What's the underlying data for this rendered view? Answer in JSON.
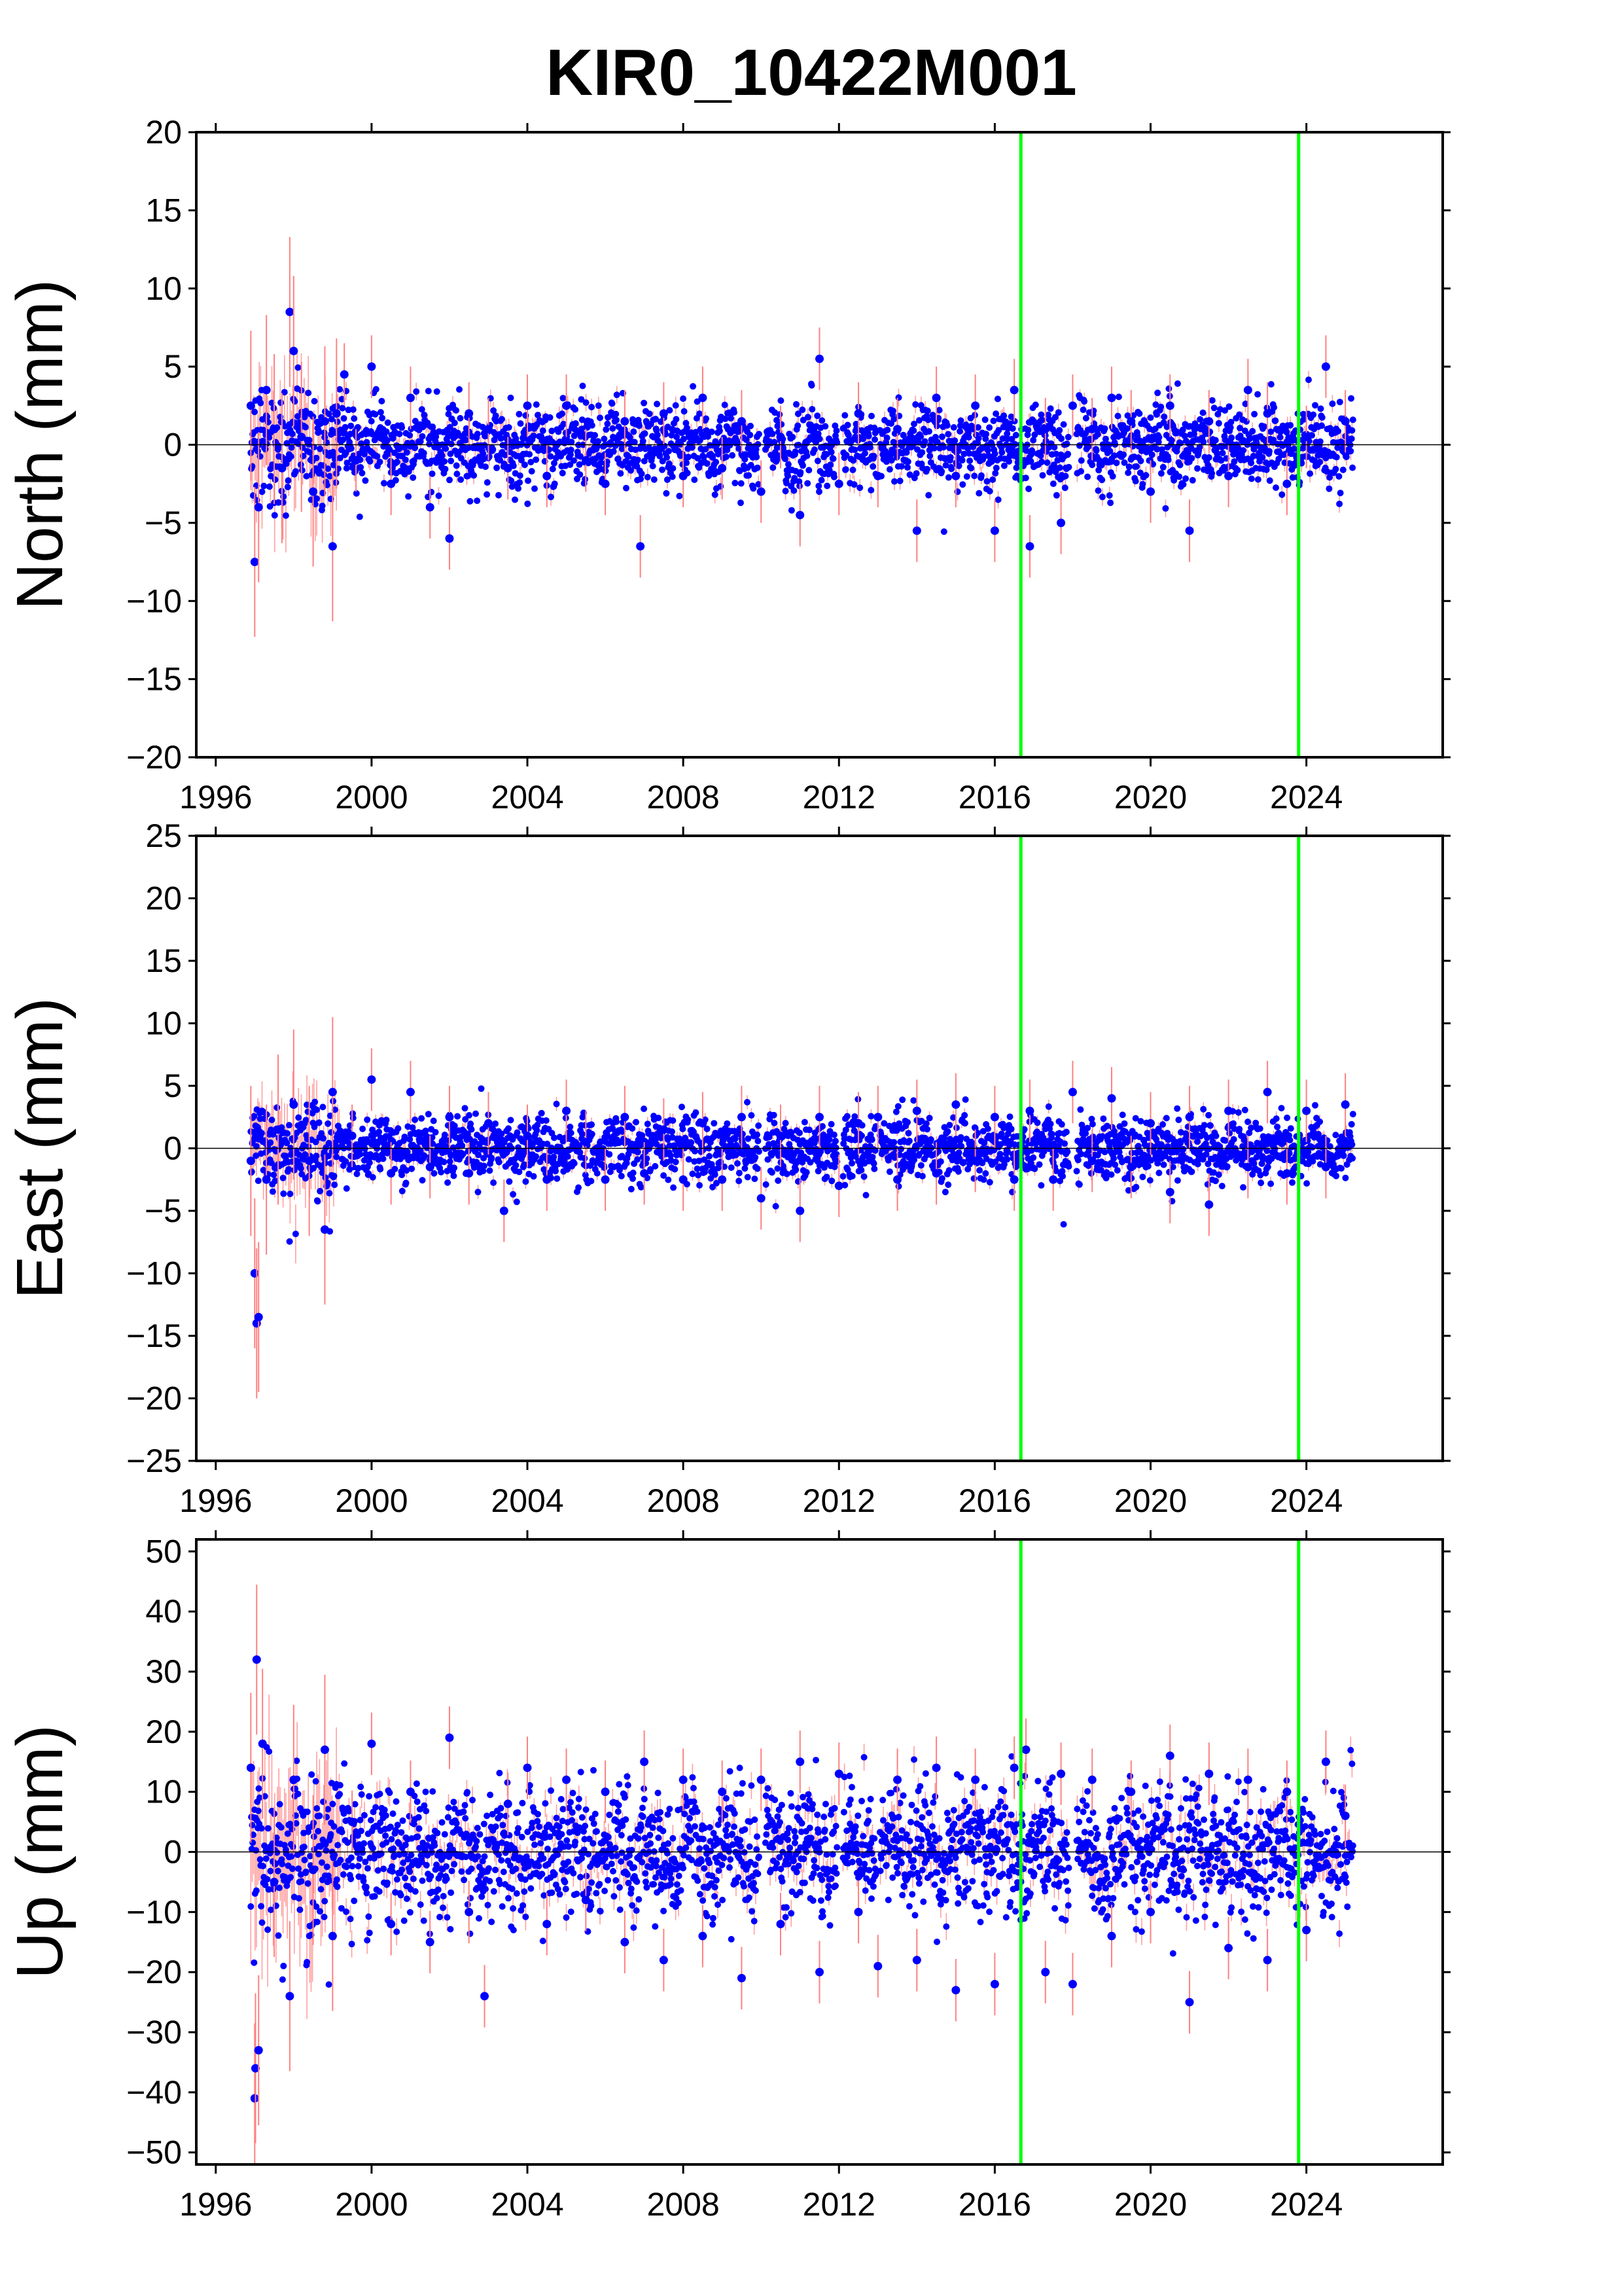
{
  "figure": {
    "title": "KIR0_10422M001"
  },
  "chart_data": [
    {
      "type": "scatter",
      "panel": "north",
      "title": "KIR0_10422M001",
      "xlabel": "",
      "ylabel": "North (mm)",
      "xlim": [
        1995.5,
        2027.5
      ],
      "ylim": [
        -20,
        20
      ],
      "x_ticks": [
        1996,
        2000,
        2004,
        2008,
        2012,
        2016,
        2020,
        2024
      ],
      "y_ticks": [
        -20,
        -15,
        -10,
        -5,
        0,
        5,
        10,
        15,
        20
      ],
      "marker_color": "#0000ff",
      "errorbar_color": "#ff8080",
      "event_lines": [
        2016.67,
        2023.8
      ],
      "event_line_color": "#00ff00",
      "zero_line": true,
      "grid": false,
      "legend": "none",
      "series": [
        {
          "x": [
            1996.9,
            1997.0,
            1997.1,
            1997.3,
            1997.5,
            1997.7,
            1997.9,
            1998.0,
            1998.2,
            1998.5,
            1998.8,
            1999.0,
            1999.1,
            1999.3,
            1999.6,
            2000.0,
            2000.5,
            2001.0,
            2001.5,
            2002.0,
            2002.5,
            2003.0,
            2003.5,
            2004.0,
            2004.5,
            2005.0,
            2005.5,
            2006.0,
            2006.5,
            2006.9,
            2007.5,
            2008.0,
            2008.5,
            2009.0,
            2009.5,
            2010.0,
            2010.5,
            2011.0,
            2011.5,
            2012.0,
            2012.5,
            2013.0,
            2013.5,
            2014.0,
            2014.5,
            2015.0,
            2015.5,
            2016.0,
            2016.5,
            2016.9,
            2017.3,
            2017.7,
            2018.0,
            2018.5,
            2019.0,
            2019.5,
            2020.0,
            2020.5,
            2021.0,
            2021.5,
            2022.0,
            2022.5,
            2023.0,
            2023.5,
            2024.0,
            2024.5,
            2025.0
          ],
          "y": [
            2.5,
            -7.5,
            -4.0,
            3.5,
            1.0,
            -1.5,
            8.5,
            6.0,
            0.5,
            -3.0,
            1.5,
            -6.5,
            2.0,
            4.5,
            -1.0,
            5.0,
            -2.5,
            3.0,
            -4.0,
            -6.0,
            2.0,
            1.0,
            -1.5,
            2.5,
            -2.0,
            2.5,
            -1.0,
            -2.5,
            1.5,
            -6.5,
            2.0,
            -2.0,
            3.0,
            -1.5,
            1.5,
            -3.0,
            0.5,
            -4.5,
            5.5,
            -2.5,
            2.0,
            -2.0,
            1.0,
            -5.5,
            3.0,
            -2.0,
            2.5,
            -5.5,
            3.5,
            -6.5,
            1.0,
            -5.0,
            2.5,
            1.0,
            3.0,
            1.5,
            -3.0,
            2.5,
            -5.5,
            1.5,
            -2.0,
            3.5,
            2.0,
            -2.5,
            0.5,
            5.0,
            1.5
          ]
        }
      ]
    },
    {
      "type": "scatter",
      "panel": "east",
      "xlabel": "",
      "ylabel": "East (mm)",
      "xlim": [
        1995.5,
        2027.5
      ],
      "ylim": [
        -25,
        25
      ],
      "x_ticks": [
        1996,
        2000,
        2004,
        2008,
        2012,
        2016,
        2020,
        2024
      ],
      "y_ticks": [
        -25,
        -20,
        -15,
        -10,
        -5,
        0,
        5,
        10,
        15,
        20,
        25
      ],
      "marker_color": "#0000ff",
      "errorbar_color": "#ff8080",
      "event_lines": [
        2016.67,
        2023.8
      ],
      "event_line_color": "#00ff00",
      "zero_line": true,
      "grid": false,
      "legend": "none",
      "series": [
        {
          "x": [
            1996.9,
            1997.0,
            1997.05,
            1997.1,
            1997.3,
            1997.6,
            1998.0,
            1998.4,
            1998.8,
            1999.0,
            1999.5,
            2000.0,
            2000.5,
            2001.0,
            2001.5,
            2002.0,
            2002.5,
            2003.0,
            2003.4,
            2004.0,
            2004.5,
            2005.0,
            2005.5,
            2006.0,
            2006.5,
            2007.0,
            2007.5,
            2008.0,
            2008.5,
            2009.0,
            2009.5,
            2010.0,
            2010.5,
            2011.0,
            2011.5,
            2012.0,
            2012.5,
            2013.0,
            2013.5,
            2014.0,
            2014.5,
            2015.0,
            2015.5,
            2016.0,
            2016.5,
            2016.9,
            2017.5,
            2018.0,
            2018.5,
            2019.0,
            2019.5,
            2020.0,
            2020.5,
            2021.0,
            2021.5,
            2022.0,
            2022.5,
            2023.0,
            2023.5,
            2024.0,
            2024.5,
            2025.0
          ],
          "y": [
            -1.0,
            -10.0,
            -14.0,
            -13.5,
            -2.5,
            1.5,
            3.5,
            -1.0,
            -6.5,
            4.5,
            1.0,
            5.5,
            -2.0,
            4.5,
            -1.5,
            2.5,
            -2.0,
            2.0,
            -5.0,
            1.0,
            -2.5,
            3.0,
            0.5,
            -2.5,
            2.5,
            -2.0,
            1.5,
            -2.5,
            2.0,
            -2.5,
            2.5,
            -4.0,
            1.0,
            -5.0,
            2.5,
            -3.0,
            2.0,
            2.5,
            -2.5,
            3.0,
            -2.0,
            3.5,
            -1.0,
            2.5,
            -2.5,
            3.0,
            -2.5,
            4.5,
            -1.0,
            4.0,
            -1.5,
            2.0,
            -3.5,
            2.5,
            -4.5,
            3.0,
            -1.5,
            4.5,
            -2.0,
            3.0,
            -1.5,
            3.5
          ]
        }
      ]
    },
    {
      "type": "scatter",
      "panel": "up",
      "xlabel": "",
      "ylabel": "Up (mm)",
      "xlim": [
        1995.5,
        2027.5
      ],
      "ylim": [
        -52,
        52
      ],
      "x_ticks": [
        1996,
        2000,
        2004,
        2008,
        2012,
        2016,
        2020,
        2024
      ],
      "y_ticks": [
        -50,
        -40,
        -30,
        -20,
        -10,
        0,
        10,
        20,
        30,
        40,
        50
      ],
      "marker_color": "#0000ff",
      "errorbar_color": "#ff8080",
      "event_lines": [
        2016.67,
        2023.8
      ],
      "event_line_color": "#00ff00",
      "zero_line": true,
      "grid": false,
      "legend": "none",
      "series": [
        {
          "x": [
            1996.9,
            1997.0,
            1997.02,
            1997.05,
            1997.1,
            1997.2,
            1997.5,
            1997.9,
            1998.0,
            1998.5,
            1998.8,
            1999.0,
            1999.5,
            2000.0,
            2000.5,
            2001.0,
            2001.5,
            2002.0,
            2002.5,
            2002.9,
            2003.5,
            2004.0,
            2004.5,
            2005.0,
            2005.5,
            2006.0,
            2006.5,
            2007.0,
            2007.5,
            2008.0,
            2008.5,
            2009.0,
            2009.5,
            2010.0,
            2010.5,
            2011.0,
            2011.5,
            2012.0,
            2012.5,
            2013.0,
            2013.5,
            2014.0,
            2014.5,
            2015.0,
            2015.5,
            2016.0,
            2016.5,
            2016.8,
            2017.3,
            2017.7,
            2018.0,
            2018.5,
            2019.0,
            2019.5,
            2020.0,
            2020.5,
            2021.0,
            2021.5,
            2022.0,
            2022.5,
            2023.0,
            2023.5,
            2024.0,
            2024.5,
            2025.0
          ],
          "y": [
            14.0,
            -41.0,
            -36.0,
            32.0,
            -33.0,
            18.0,
            -5.0,
            -24.0,
            12.0,
            -3.0,
            17.0,
            -14.0,
            5.0,
            18.0,
            -12.0,
            10.0,
            -15.0,
            19.0,
            -10.0,
            -24.0,
            8.0,
            14.0,
            -12.0,
            12.0,
            -8.0,
            10.0,
            -15.0,
            15.0,
            -18.0,
            12.0,
            -14.0,
            10.0,
            -21.0,
            12.0,
            -12.0,
            15.0,
            -20.0,
            13.0,
            -10.0,
            -19.0,
            12.0,
            -18.0,
            14.0,
            -23.0,
            12.0,
            -22.0,
            14.0,
            17.0,
            -20.0,
            13.0,
            -22.0,
            12.0,
            -14.0,
            10.0,
            -10.0,
            16.0,
            -25.0,
            13.0,
            -16.0,
            12.0,
            -18.0,
            10.0,
            -13.0,
            15.0,
            6.0
          ]
        }
      ]
    }
  ]
}
